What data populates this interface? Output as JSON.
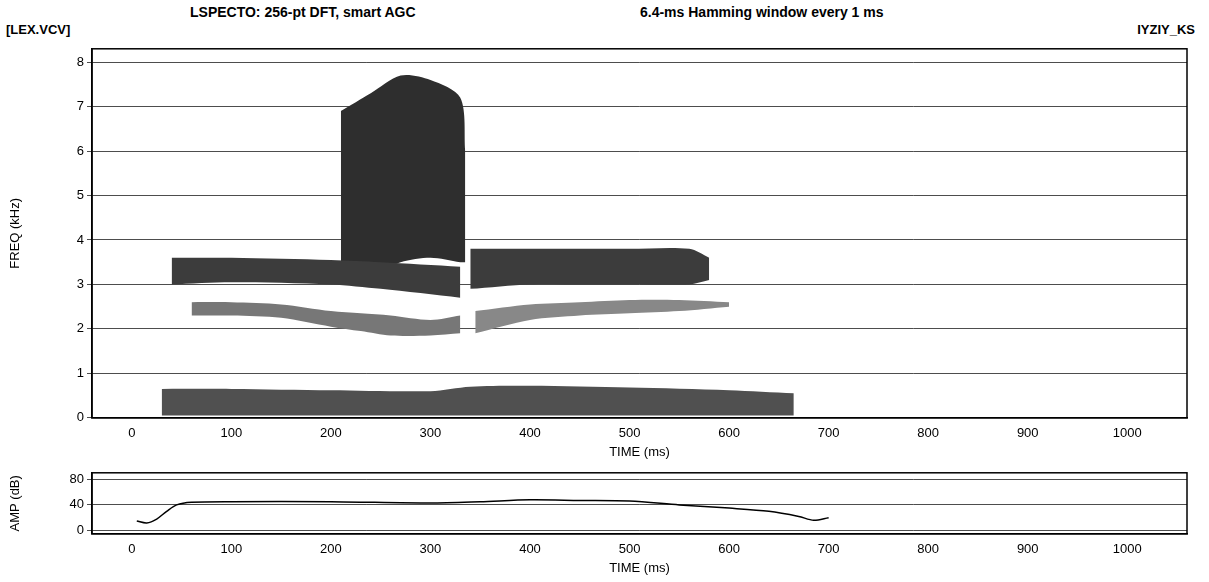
{
  "chart_data": [
    {
      "type": "spectrogram",
      "title": "LSPECTO: 256-pt DFT, smart AGC",
      "subtitle": "6.4-ms Hamming window every 1 ms",
      "annotations": [
        "[LEX.VCV]",
        "IYZIY_KS"
      ],
      "xlabel": "TIME (ms)",
      "ylabel": "FREQ (kHz)",
      "xlim": [
        -40,
        1060
      ],
      "xticks": [
        0,
        100,
        200,
        300,
        400,
        500,
        600,
        700,
        800,
        900,
        1000
      ],
      "ylim": [
        0,
        8.3
      ],
      "yticks": [
        0,
        1,
        2,
        3,
        4,
        5,
        6,
        7,
        8
      ],
      "grid": true,
      "bands": [
        {
          "x": [
            30,
            100,
            200,
            300,
            340,
            400,
            500,
            600,
            665
          ],
          "low": [
            0.05,
            0.05,
            0.05,
            0.05,
            0.05,
            0.05,
            0.05,
            0.05,
            0.05
          ],
          "high": [
            0.65,
            0.65,
            0.62,
            0.6,
            0.7,
            0.72,
            0.68,
            0.62,
            0.55
          ],
          "color": "#505050"
        },
        {
          "x": [
            60,
            100,
            150,
            200,
            230,
            260,
            300,
            330
          ],
          "low": [
            2.3,
            2.3,
            2.25,
            2.05,
            1.95,
            1.85,
            1.85,
            1.9
          ],
          "high": [
            2.6,
            2.6,
            2.55,
            2.4,
            2.35,
            2.3,
            2.2,
            2.3
          ],
          "color": "#777777"
        },
        {
          "x": [
            40,
            100,
            200,
            250,
            330
          ],
          "low": [
            3.0,
            3.05,
            3.0,
            2.9,
            2.7
          ],
          "high": [
            3.6,
            3.6,
            3.55,
            3.5,
            3.4
          ],
          "color": "#3c3c3c"
        },
        {
          "x": [
            210,
            240,
            270,
            300,
            330,
            335
          ],
          "low": [
            3.3,
            3.2,
            3.5,
            3.6,
            3.5,
            3.5
          ],
          "high": [
            6.9,
            7.3,
            7.7,
            7.6,
            7.2,
            6.0
          ],
          "color": "#2e2e2e"
        },
        {
          "x": [
            345,
            400,
            450,
            500,
            550,
            600
          ],
          "low": [
            1.9,
            2.2,
            2.3,
            2.35,
            2.4,
            2.5
          ],
          "high": [
            2.4,
            2.55,
            2.6,
            2.65,
            2.65,
            2.6
          ],
          "color": "#888888"
        },
        {
          "x": [
            340,
            400,
            450,
            500,
            560,
            580
          ],
          "low": [
            2.9,
            3.0,
            3.0,
            3.0,
            3.0,
            3.1
          ],
          "high": [
            3.8,
            3.8,
            3.8,
            3.8,
            3.8,
            3.6
          ],
          "color": "#3c3c3c"
        }
      ]
    },
    {
      "type": "line",
      "xlabel": "TIME (ms)",
      "ylabel": "AMP (dB)",
      "xlim": [
        -40,
        1060
      ],
      "xticks": [
        0,
        100,
        200,
        300,
        400,
        500,
        600,
        700,
        800,
        900,
        1000
      ],
      "ylim": [
        -5,
        90
      ],
      "yticks": [
        0,
        40,
        80
      ],
      "grid": true,
      "color": "#000000",
      "x": [
        5,
        15,
        25,
        35,
        45,
        60,
        100,
        200,
        300,
        350,
        400,
        450,
        500,
        550,
        600,
        640,
        670,
        685,
        700
      ],
      "values": [
        15,
        12,
        18,
        30,
        40,
        44,
        45,
        45,
        43,
        45,
        48,
        47,
        46,
        40,
        35,
        30,
        22,
        16,
        20
      ]
    }
  ]
}
